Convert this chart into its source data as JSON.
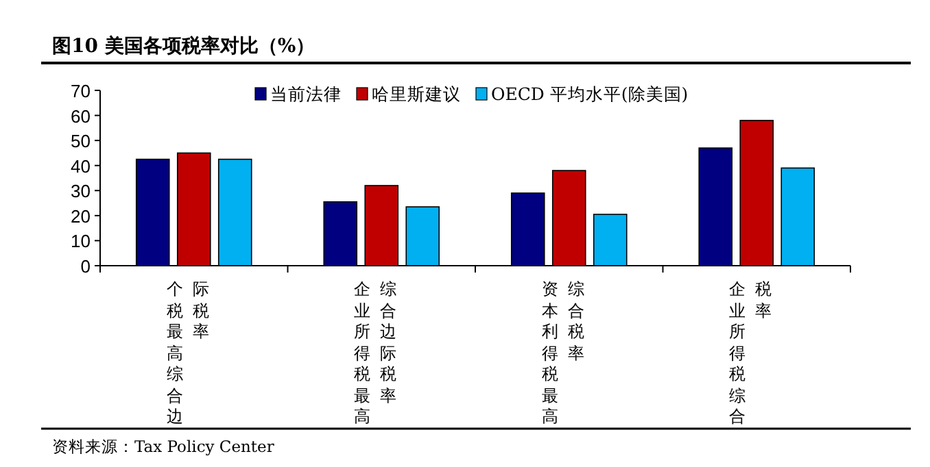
{
  "chart_data": {
    "type": "bar",
    "title": "图10 美国各项税率对比（%）",
    "categories": [
      "个税最高综合边际税率",
      "企业所得税最高综合边际税率",
      "资本利得税最高综合税率",
      "企业所得税综合税率"
    ],
    "series": [
      {
        "name": "当前法律",
        "color": "#000080",
        "values": [
          42.5,
          25.5,
          29,
          47
        ]
      },
      {
        "name": "哈里斯建议",
        "color": "#c00000",
        "values": [
          45,
          32,
          38,
          58
        ]
      },
      {
        "name": "OECD 平均水平(除美国)",
        "color": "#00b0f0",
        "values": [
          42.5,
          23.5,
          20.5,
          39
        ]
      }
    ],
    "ylim": [
      0,
      70
    ],
    "yticks": [
      0,
      10,
      20,
      30,
      40,
      50,
      60,
      70
    ],
    "legend": "top",
    "grid": false,
    "annotations": [
      "资料来源：Tax Policy Center"
    ]
  }
}
